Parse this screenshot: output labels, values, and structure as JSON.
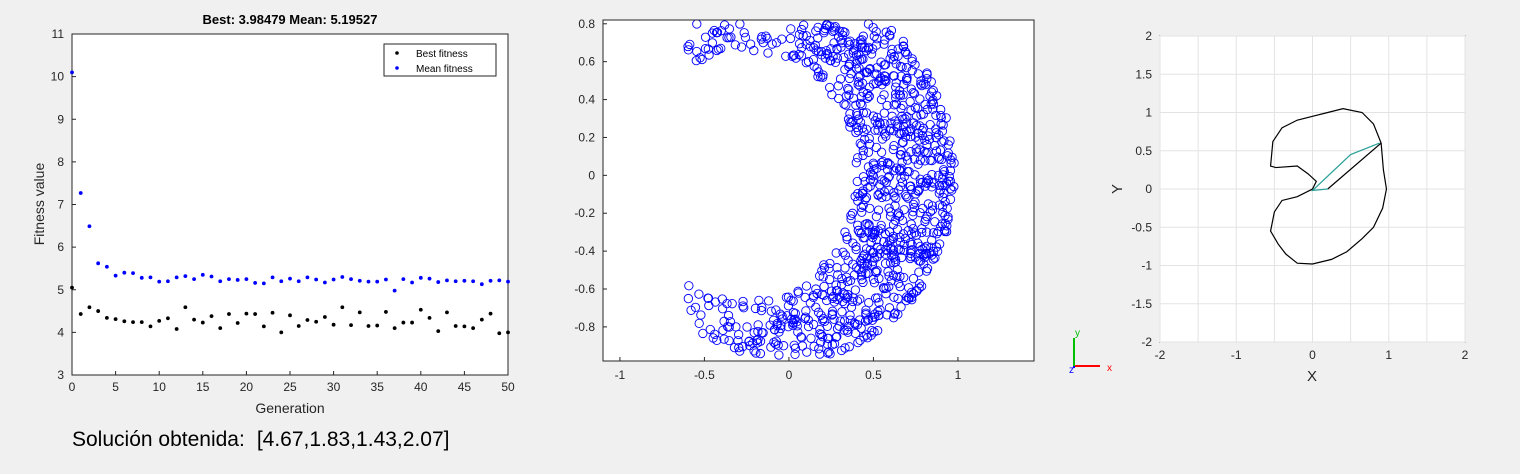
{
  "solution": {
    "label": "Solución obtenida:",
    "value": "[4.67,1.83,1.43,2.07]"
  },
  "triad": {
    "x": "x",
    "y": "y",
    "z": "z",
    "x_color": "#ff0000",
    "y_color": "#00c000",
    "z_color": "#0000ff"
  },
  "chart_data": [
    {
      "type": "scatter",
      "title": "Best: 3.98479 Mean: 5.19527",
      "xlabel": "Generation",
      "ylabel": "Fitness value",
      "xlim": [
        0,
        50
      ],
      "ylim": [
        3,
        11
      ],
      "xticks": [
        0,
        5,
        10,
        15,
        20,
        25,
        30,
        35,
        40,
        45,
        50
      ],
      "yticks": [
        3,
        4,
        5,
        6,
        7,
        8,
        9,
        10,
        11
      ],
      "legend_position": "top-right",
      "grid": false,
      "series": [
        {
          "name": "Best fitness",
          "color": "#000000",
          "x": [
            0,
            1,
            2,
            3,
            4,
            5,
            6,
            7,
            8,
            9,
            10,
            11,
            12,
            13,
            14,
            15,
            16,
            17,
            18,
            19,
            20,
            21,
            22,
            23,
            24,
            25,
            26,
            27,
            28,
            29,
            30,
            31,
            32,
            33,
            34,
            35,
            36,
            37,
            38,
            39,
            40,
            41,
            42,
            43,
            44,
            45,
            46,
            47,
            48,
            49,
            50
          ],
          "values": [
            5.05,
            4.43,
            4.59,
            4.5,
            4.34,
            4.31,
            4.26,
            4.24,
            4.24,
            4.14,
            4.27,
            4.33,
            4.08,
            4.59,
            4.3,
            4.23,
            4.38,
            4.1,
            4.43,
            4.22,
            4.44,
            4.43,
            4.14,
            4.46,
            4.0,
            4.4,
            4.15,
            4.29,
            4.25,
            4.36,
            4.18,
            4.59,
            4.17,
            4.47,
            4.15,
            4.16,
            4.48,
            4.1,
            4.23,
            4.23,
            4.53,
            4.34,
            4.03,
            4.47,
            4.15,
            4.14,
            4.1,
            4.3,
            4.44,
            3.98,
            4.0
          ]
        },
        {
          "name": "Mean fitness",
          "color": "#0000ff",
          "x": [
            0,
            1,
            2,
            3,
            4,
            5,
            6,
            7,
            8,
            9,
            10,
            11,
            12,
            13,
            14,
            15,
            16,
            17,
            18,
            19,
            20,
            21,
            22,
            23,
            24,
            25,
            26,
            27,
            28,
            29,
            30,
            31,
            32,
            33,
            34,
            35,
            36,
            37,
            38,
            39,
            40,
            41,
            42,
            43,
            44,
            45,
            46,
            47,
            48,
            49,
            50
          ],
          "values": [
            10.1,
            7.27,
            6.49,
            5.62,
            5.54,
            5.33,
            5.4,
            5.39,
            5.28,
            5.29,
            5.19,
            5.2,
            5.29,
            5.32,
            5.25,
            5.35,
            5.31,
            5.2,
            5.25,
            5.23,
            5.25,
            5.16,
            5.15,
            5.29,
            5.2,
            5.26,
            5.2,
            5.29,
            5.24,
            5.17,
            5.24,
            5.3,
            5.25,
            5.21,
            5.19,
            5.19,
            5.24,
            4.98,
            5.25,
            5.17,
            5.28,
            5.26,
            5.18,
            5.22,
            5.2,
            5.21,
            5.2,
            5.13,
            5.21,
            5.22,
            5.19
          ]
        }
      ]
    },
    {
      "type": "scatter",
      "marker": "circle-open",
      "color": "#0000ff",
      "xlim": [
        -1.1,
        1.45
      ],
      "ylim": [
        -0.98,
        0.82
      ],
      "xticks": [
        -1,
        -0.5,
        0,
        0.5,
        1
      ],
      "yticks": [
        -0.8,
        -0.6,
        -0.4,
        -0.2,
        0,
        0.2,
        0.4,
        0.6,
        0.8
      ],
      "grid": false,
      "shape": "crescent",
      "outer_radius": 0.98,
      "inner_circle_center": [
        -0.26,
        0.0
      ],
      "inner_circle_radius": 0.66,
      "point_count": 1000
    },
    {
      "type": "line",
      "xlabel": "X",
      "ylabel": "Y",
      "xlim": [
        -2,
        2
      ],
      "ylim": [
        -2,
        2
      ],
      "xticks": [
        -2,
        -1,
        0,
        1,
        2
      ],
      "yticks": [
        -2,
        -1.5,
        -1,
        -0.5,
        0,
        0.5,
        1,
        1.5,
        2
      ],
      "grid": true,
      "boundary_color": "#000000",
      "boundary": [
        [
          0.2,
          0.0
        ],
        [
          0.9,
          0.6
        ],
        [
          0.8,
          0.85
        ],
        [
          0.65,
          1.0
        ],
        [
          0.4,
          1.05
        ],
        [
          0.2,
          1.0
        ],
        [
          0.0,
          0.95
        ],
        [
          -0.2,
          0.9
        ],
        [
          -0.4,
          0.8
        ],
        [
          -0.52,
          0.62
        ],
        [
          -0.55,
          0.3
        ],
        [
          -0.48,
          0.28
        ],
        [
          -0.2,
          0.3
        ],
        [
          -0.06,
          0.2
        ],
        [
          0.05,
          0.1
        ],
        [
          0.0,
          0.0
        ],
        [
          -0.2,
          -0.1
        ],
        [
          -0.4,
          -0.15
        ],
        [
          -0.5,
          -0.3
        ],
        [
          -0.55,
          -0.55
        ],
        [
          -0.45,
          -0.72
        ],
        [
          -0.35,
          -0.85
        ],
        [
          -0.2,
          -0.97
        ],
        [
          0.0,
          -0.98
        ],
        [
          0.25,
          -0.92
        ],
        [
          0.45,
          -0.82
        ],
        [
          0.65,
          -0.65
        ],
        [
          0.8,
          -0.5
        ],
        [
          0.92,
          -0.25
        ],
        [
          0.97,
          0.0
        ],
        [
          0.93,
          0.25
        ],
        [
          0.9,
          0.6
        ]
      ],
      "arm_color": "#2aa198",
      "arm": [
        [
          0.2,
          0.0
        ],
        [
          0.0,
          -0.02
        ],
        [
          0.5,
          0.45
        ],
        [
          0.88,
          0.6
        ]
      ]
    }
  ]
}
